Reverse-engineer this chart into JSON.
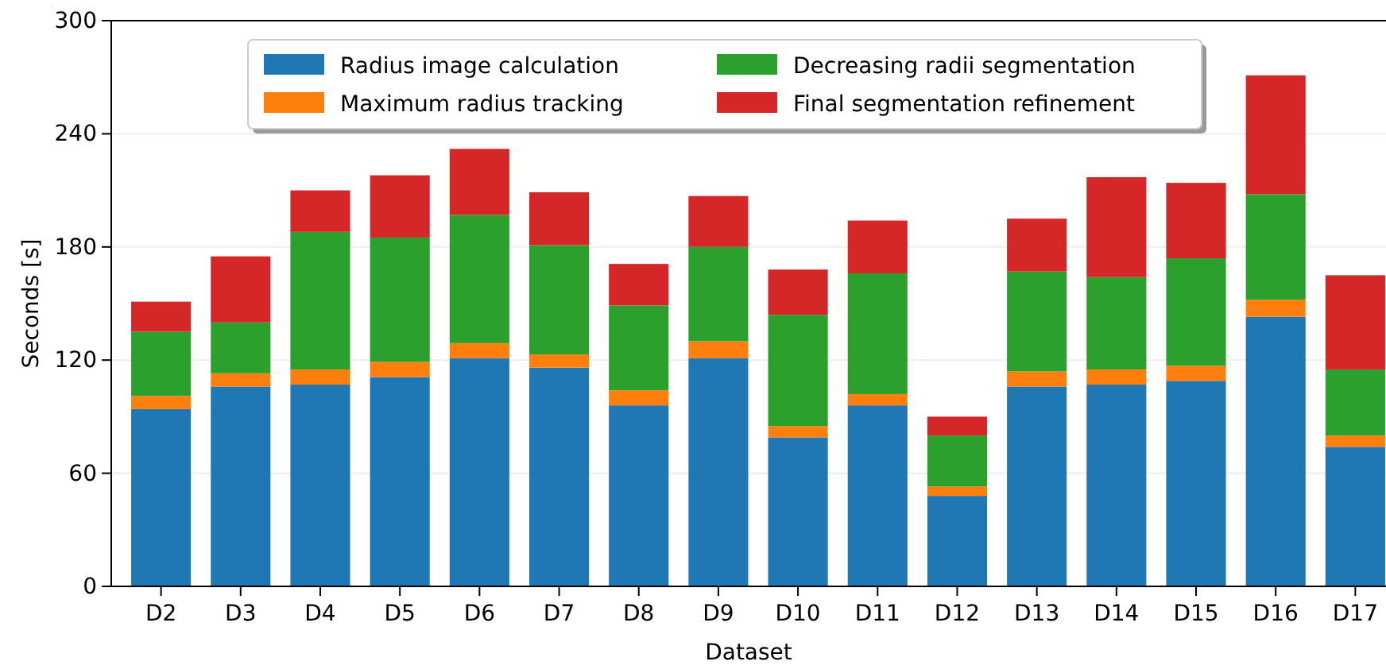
{
  "chart_data": {
    "type": "bar",
    "stacked": true,
    "xlabel": "Dataset",
    "ylabel": "Seconds [s]",
    "categories": [
      "D2",
      "D3",
      "D4",
      "D5",
      "D6",
      "D7",
      "D8",
      "D9",
      "D10",
      "D11",
      "D12",
      "D13",
      "D14",
      "D15",
      "D16",
      "D17"
    ],
    "series": [
      {
        "name": "Radius image calculation",
        "color": "#1f77b4",
        "values": [
          94,
          106,
          107,
          111,
          121,
          116,
          96,
          121,
          79,
          96,
          48,
          106,
          107,
          109,
          143,
          74
        ]
      },
      {
        "name": "Maximum radius tracking",
        "color": "#ff7f0e",
        "values": [
          7,
          7,
          8,
          8,
          8,
          7,
          8,
          9,
          6,
          6,
          5,
          8,
          8,
          8,
          9,
          6
        ]
      },
      {
        "name": "Decreasing radii segmentation",
        "color": "#2ca02c",
        "values": [
          34,
          27,
          73,
          66,
          68,
          58,
          45,
          50,
          59,
          64,
          27,
          53,
          49,
          57,
          56,
          35
        ]
      },
      {
        "name": "Final segmentation refinement",
        "color": "#d62728",
        "values": [
          16,
          35,
          22,
          33,
          35,
          28,
          22,
          27,
          24,
          28,
          10,
          28,
          53,
          40,
          63,
          50
        ]
      }
    ],
    "ylim": [
      0,
      300
    ],
    "yticks": [
      0,
      60,
      120,
      180,
      240,
      300
    ],
    "grid": "y",
    "legend": "top"
  }
}
